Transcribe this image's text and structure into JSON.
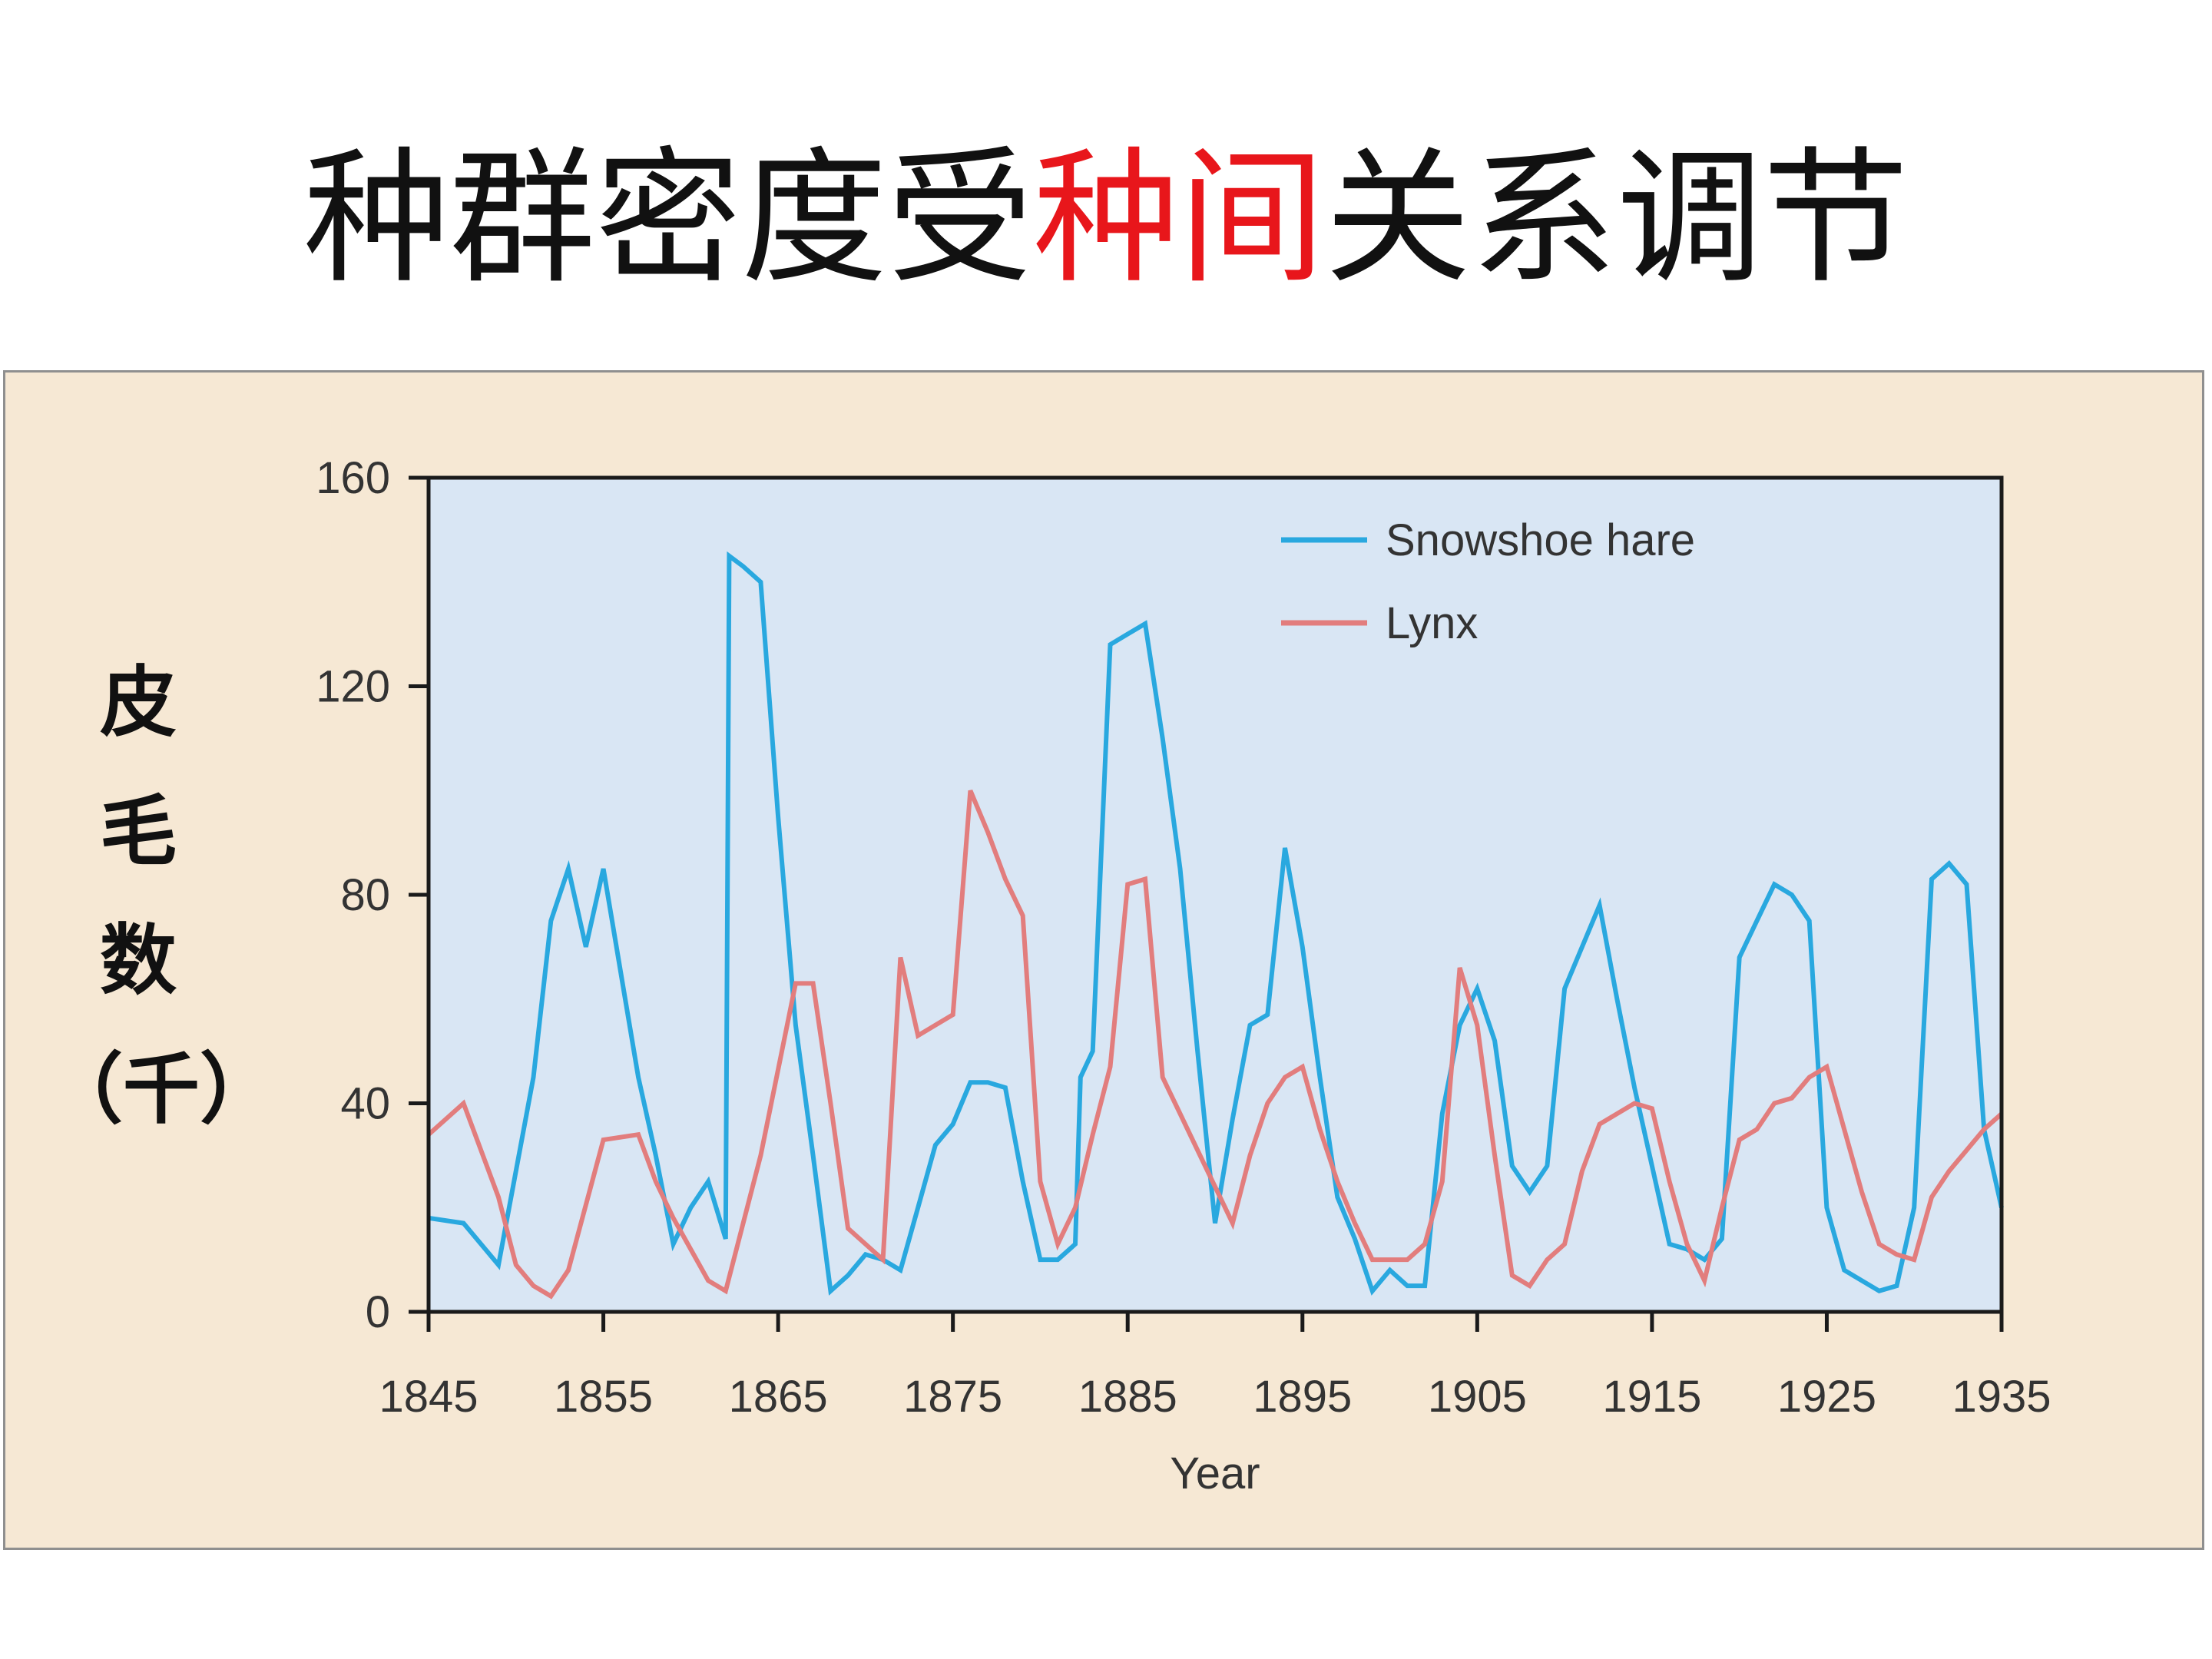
{
  "title": {
    "part1": "种群密度受",
    "part2": "种间",
    "part3": "关系调节",
    "highlight_color": "#e8161b"
  },
  "ylabel_chars": [
    "皮",
    "毛",
    "数",
    "（千）"
  ],
  "chart_data": {
    "type": "line",
    "xlabel": "Year",
    "ylabel": "皮毛数（千）",
    "xlim": [
      1845,
      1935
    ],
    "ylim": [
      0,
      160
    ],
    "x_ticks": [
      1845,
      1855,
      1865,
      1875,
      1885,
      1895,
      1905,
      1915,
      1925,
      1935
    ],
    "y_ticks": [
      0,
      40,
      80,
      120,
      160
    ],
    "legend_position": "top-right",
    "background": "#d9e6f4",
    "series": [
      {
        "name": "Snowshoe hare",
        "color": "#29a8df",
        "points": [
          [
            1845,
            18
          ],
          [
            1847,
            17
          ],
          [
            1849,
            9
          ],
          [
            1851,
            45
          ],
          [
            1852,
            75
          ],
          [
            1853,
            85
          ],
          [
            1854,
            70
          ],
          [
            1855,
            85
          ],
          [
            1856,
            65
          ],
          [
            1857,
            45
          ],
          [
            1858,
            30
          ],
          [
            1859,
            13
          ],
          [
            1860,
            20
          ],
          [
            1861,
            25
          ],
          [
            1862,
            14
          ],
          [
            1862.2,
            145
          ],
          [
            1863,
            143
          ],
          [
            1864,
            140
          ],
          [
            1865,
            95
          ],
          [
            1866,
            55
          ],
          [
            1867,
            30
          ],
          [
            1868,
            4
          ],
          [
            1869,
            7
          ],
          [
            1870,
            11
          ],
          [
            1871,
            10
          ],
          [
            1872,
            8
          ],
          [
            1873,
            20
          ],
          [
            1874,
            32
          ],
          [
            1875,
            36
          ],
          [
            1876,
            44
          ],
          [
            1877,
            44
          ],
          [
            1878,
            43
          ],
          [
            1879,
            25
          ],
          [
            1880,
            10
          ],
          [
            1881,
            10
          ],
          [
            1882,
            13
          ],
          [
            1882.3,
            45
          ],
          [
            1883,
            50
          ],
          [
            1884,
            128
          ],
          [
            1885,
            130
          ],
          [
            1886,
            132
          ],
          [
            1887,
            110
          ],
          [
            1888,
            85
          ],
          [
            1889,
            50
          ],
          [
            1890,
            17
          ],
          [
            1891,
            37
          ],
          [
            1892,
            55
          ],
          [
            1893,
            57
          ],
          [
            1894,
            89
          ],
          [
            1895,
            70
          ],
          [
            1896,
            45
          ],
          [
            1897,
            22
          ],
          [
            1898,
            14
          ],
          [
            1899,
            4
          ],
          [
            1900,
            8
          ],
          [
            1901,
            5
          ],
          [
            1902,
            5
          ],
          [
            1903,
            38
          ],
          [
            1904,
            55
          ],
          [
            1905,
            62
          ],
          [
            1906,
            52
          ],
          [
            1907,
            28
          ],
          [
            1908,
            23
          ],
          [
            1909,
            28
          ],
          [
            1910,
            62
          ],
          [
            1912,
            78
          ],
          [
            1913,
            60
          ],
          [
            1914,
            43
          ],
          [
            1915,
            28
          ],
          [
            1916,
            13
          ],
          [
            1917,
            12
          ],
          [
            1918,
            10
          ],
          [
            1919,
            14
          ],
          [
            1920,
            68
          ],
          [
            1921,
            75
          ],
          [
            1922,
            82
          ],
          [
            1923,
            80
          ],
          [
            1924,
            75
          ],
          [
            1925,
            20
          ],
          [
            1926,
            8
          ],
          [
            1927,
            6
          ],
          [
            1928,
            4
          ],
          [
            1929,
            5
          ],
          [
            1930,
            20
          ],
          [
            1931,
            83
          ],
          [
            1932,
            86
          ],
          [
            1933,
            82
          ],
          [
            1934,
            35
          ],
          [
            1935,
            20
          ]
        ]
      },
      {
        "name": "Lynx",
        "color": "#e27d7d",
        "points": [
          [
            1845,
            34
          ],
          [
            1847,
            40
          ],
          [
            1849,
            22
          ],
          [
            1850,
            9
          ],
          [
            1851,
            5
          ],
          [
            1852,
            3
          ],
          [
            1853,
            8
          ],
          [
            1855,
            33
          ],
          [
            1857,
            34
          ],
          [
            1858,
            25
          ],
          [
            1859,
            18
          ],
          [
            1860,
            12
          ],
          [
            1861,
            6
          ],
          [
            1862,
            4
          ],
          [
            1864,
            30
          ],
          [
            1866,
            63
          ],
          [
            1867,
            63
          ],
          [
            1868,
            40
          ],
          [
            1869,
            16
          ],
          [
            1870,
            13
          ],
          [
            1871,
            10
          ],
          [
            1872,
            68
          ],
          [
            1873,
            53
          ],
          [
            1874,
            55
          ],
          [
            1875,
            57
          ],
          [
            1876,
            100
          ],
          [
            1877,
            92
          ],
          [
            1878,
            83
          ],
          [
            1879,
            76
          ],
          [
            1880,
            25
          ],
          [
            1881,
            13
          ],
          [
            1882,
            20
          ],
          [
            1883,
            34
          ],
          [
            1884,
            47
          ],
          [
            1885,
            82
          ],
          [
            1886,
            83
          ],
          [
            1887,
            45
          ],
          [
            1888,
            38
          ],
          [
            1889,
            31
          ],
          [
            1890,
            24
          ],
          [
            1891,
            17
          ],
          [
            1892,
            30
          ],
          [
            1893,
            40
          ],
          [
            1894,
            45
          ],
          [
            1895,
            47
          ],
          [
            1896,
            35
          ],
          [
            1897,
            25
          ],
          [
            1898,
            17
          ],
          [
            1899,
            10
          ],
          [
            1900,
            10
          ],
          [
            1901,
            10
          ],
          [
            1902,
            13
          ],
          [
            1903,
            25
          ],
          [
            1904,
            66
          ],
          [
            1905,
            55
          ],
          [
            1906,
            30
          ],
          [
            1907,
            7
          ],
          [
            1908,
            5
          ],
          [
            1909,
            10
          ],
          [
            1910,
            13
          ],
          [
            1911,
            27
          ],
          [
            1912,
            36
          ],
          [
            1913,
            38
          ],
          [
            1914,
            40
          ],
          [
            1915,
            39
          ],
          [
            1916,
            25
          ],
          [
            1917,
            13
          ],
          [
            1918,
            6
          ],
          [
            1919,
            20
          ],
          [
            1920,
            33
          ],
          [
            1921,
            35
          ],
          [
            1922,
            40
          ],
          [
            1923,
            41
          ],
          [
            1924,
            45
          ],
          [
            1925,
            47
          ],
          [
            1926,
            35
          ],
          [
            1927,
            23
          ],
          [
            1928,
            13
          ],
          [
            1929,
            11
          ],
          [
            1930,
            10
          ],
          [
            1931,
            22
          ],
          [
            1932,
            27
          ],
          [
            1933,
            31
          ],
          [
            1934,
            35
          ],
          [
            1935,
            38
          ]
        ]
      }
    ]
  }
}
